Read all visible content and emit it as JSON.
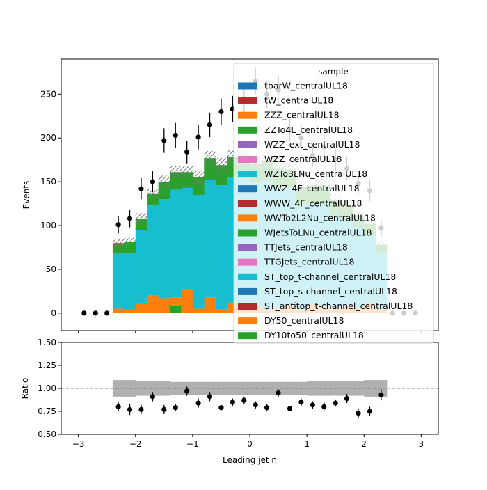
{
  "chart_data": {
    "type": "bar",
    "stacked": true,
    "xlabel": "Leading jet  η",
    "ylabel_top": "Events",
    "ylabel_bottom": "Ratio",
    "xlim": [
      -3.3,
      3.3
    ],
    "ylim_top": [
      -20,
      290
    ],
    "ylim_bottom": [
      0.5,
      1.5
    ],
    "xticks": [
      "−3",
      "−2",
      "−1",
      "0",
      "1",
      "2",
      "3"
    ],
    "yticks_top": [
      "0",
      "50",
      "100",
      "150",
      "200",
      "250"
    ],
    "yticks_bottom": [
      "0.50",
      "0.75",
      "1.00",
      "1.25",
      "1.50"
    ],
    "legend": {
      "title": "sample",
      "placement": "upper right",
      "entries": [
        {
          "label": "tbarW_centralUL18",
          "color": "#1f77b4"
        },
        {
          "label": "tW_centralUL18",
          "color": "#b22d2d"
        },
        {
          "label": "ZZZ_centralUL18",
          "color": "#ff7f0e"
        },
        {
          "label": "ZZTo4L_centralUL18",
          "color": "#2ca02c"
        },
        {
          "label": "WZZ_ext_centralUL18",
          "color": "#9467bd"
        },
        {
          "label": "WZZ_centralUL18",
          "color": "#e377c2"
        },
        {
          "label": "WZTo3LNu_centralUL18",
          "color": "#17becf"
        },
        {
          "label": "WWZ_4F_centralUL18",
          "color": "#1f77b4"
        },
        {
          "label": "WWW_4F_centralUL18",
          "color": "#b22d2d"
        },
        {
          "label": "WWTo2L2Nu_centralUL18",
          "color": "#ff7f0e"
        },
        {
          "label": "WJetsToLNu_centralUL18",
          "color": "#2ca02c"
        },
        {
          "label": "TTJets_centralUL18",
          "color": "#9467bd"
        },
        {
          "label": "TTGJets_centralUL18",
          "color": "#e377c2"
        },
        {
          "label": "ST_top_t-channel_centralUL18",
          "color": "#17becf"
        },
        {
          "label": "ST_top_s-channel_centralUL18",
          "color": "#1f77b4"
        },
        {
          "label": "ST_antitop_t-channel_centralUL18",
          "color": "#b22d2d"
        },
        {
          "label": "DY50_centralUL18",
          "color": "#ff7f0e"
        },
        {
          "label": "DY10to50_centralUL18",
          "color": "#2ca02c"
        }
      ]
    },
    "bin_edges": [
      -2.4,
      -2.2,
      -2.0,
      -1.8,
      -1.6,
      -1.4,
      -1.2,
      -1.0,
      -0.8,
      -0.6,
      -0.4,
      -0.2,
      0.0,
      0.2,
      0.4,
      0.6,
      0.8,
      1.0,
      1.2,
      1.4,
      1.6,
      1.8,
      2.0,
      2.2,
      2.4
    ],
    "mc_components": {
      "DY10to50": [
        0,
        0,
        0,
        0,
        0,
        8,
        0,
        0,
        0,
        0,
        0,
        0,
        0,
        0,
        0,
        0,
        0,
        0,
        0,
        0,
        0,
        0,
        0,
        0
      ],
      "DY50": [
        5,
        3,
        11,
        20,
        17,
        10,
        27,
        5,
        18,
        4,
        12,
        6,
        9,
        3,
        5,
        9,
        4,
        10,
        7,
        5,
        8,
        6,
        11,
        4
      ],
      "WZTo3LNu": [
        63,
        65,
        84,
        103,
        113,
        123,
        116,
        130,
        134,
        142,
        143,
        150,
        140,
        148,
        138,
        134,
        120,
        116,
        118,
        106,
        98,
        92,
        78,
        64
      ],
      "ZZTo4L": [
        12,
        13,
        13,
        13,
        20,
        20,
        18,
        20,
        25,
        23,
        23,
        22,
        21,
        23,
        22,
        21,
        20,
        20,
        21,
        18,
        17,
        13,
        13,
        10
      ]
    },
    "mc_uncertainty": [
      5,
      5,
      6,
      6,
      7,
      7,
      7,
      8,
      8,
      8,
      8,
      9,
      8,
      9,
      8,
      8,
      7,
      7,
      8,
      7,
      6,
      6,
      5,
      5
    ],
    "data_x": [
      -2.9,
      -2.7,
      -2.5,
      -2.3,
      -2.1,
      -1.9,
      -1.7,
      -1.5,
      -1.3,
      -1.1,
      -0.9,
      -0.7,
      -0.5,
      -0.3,
      -0.1,
      0.1,
      0.3,
      0.5,
      0.7,
      0.9,
      1.1,
      1.3,
      1.5,
      1.7,
      1.9,
      2.1,
      2.3,
      2.5,
      2.7,
      2.9
    ],
    "data_y": [
      0,
      0,
      0,
      101,
      108,
      142,
      150,
      197,
      203,
      184,
      201,
      215,
      230,
      233,
      245,
      265,
      250,
      255,
      210,
      200,
      180,
      190,
      175,
      165,
      148,
      140,
      97,
      0,
      0,
      0
    ],
    "data_err": [
      0,
      0,
      0,
      10,
      10,
      12,
      12,
      14,
      14,
      13,
      14,
      14,
      15,
      15,
      16,
      16,
      16,
      16,
      14,
      14,
      13,
      14,
      13,
      13,
      12,
      12,
      10,
      0,
      0,
      0
    ],
    "ratio_x": [
      -2.3,
      -2.1,
      -1.9,
      -1.7,
      -1.5,
      -1.3,
      -1.1,
      -0.9,
      -0.7,
      -0.5,
      -0.3,
      -0.1,
      0.1,
      0.3,
      0.5,
      0.7,
      0.9,
      1.1,
      1.3,
      1.5,
      1.7,
      1.9,
      2.1,
      2.3
    ],
    "ratio_y": [
      0.8,
      0.77,
      0.77,
      0.91,
      0.77,
      0.79,
      0.97,
      0.84,
      0.91,
      0.79,
      0.85,
      0.87,
      0.82,
      0.79,
      0.95,
      0.78,
      0.85,
      0.82,
      0.8,
      0.84,
      0.89,
      0.73,
      0.75,
      0.93
    ],
    "ratio_err": [
      0.05,
      0.06,
      0.05,
      0.05,
      0.05,
      0.04,
      0.05,
      0.05,
      0.05,
      0.03,
      0.04,
      0.04,
      0.04,
      0.04,
      0.04,
      0.03,
      0.04,
      0.04,
      0.05,
      0.04,
      0.05,
      0.05,
      0.05,
      0.06
    ],
    "ratio_unc_band": [
      0.09,
      0.09,
      0.08,
      0.08,
      0.08,
      0.07,
      0.07,
      0.07,
      0.07,
      0.07,
      0.07,
      0.07,
      0.07,
      0.07,
      0.07,
      0.07,
      0.07,
      0.08,
      0.08,
      0.08,
      0.08,
      0.08,
      0.09,
      0.09
    ],
    "ratio_reference": 1.0
  }
}
